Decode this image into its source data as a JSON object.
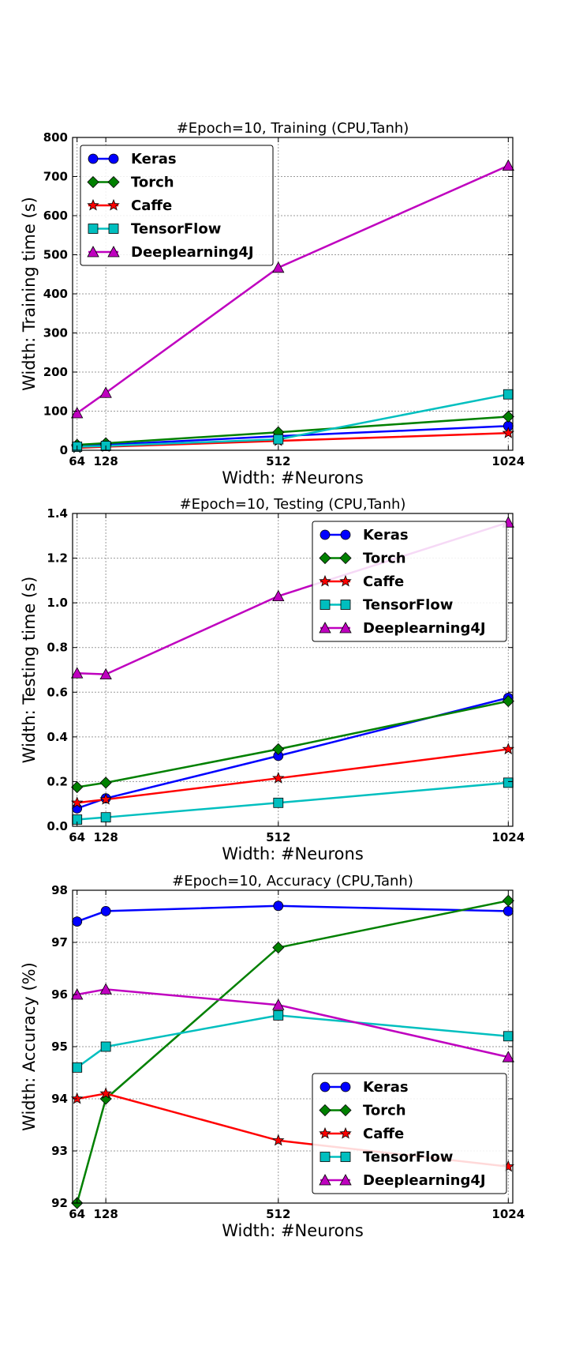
{
  "chart_data": [
    {
      "type": "line",
      "title": "#Epoch=10, Training (CPU,Tanh)",
      "xlabel": "Width: #Neurons",
      "ylabel": "Width: Training time (s)",
      "x": [
        64,
        128,
        512,
        1024
      ],
      "xticks": [
        64,
        128,
        512,
        1024
      ],
      "xlim": [
        54,
        1034
      ],
      "ylim": [
        0,
        800
      ],
      "yticks": [
        0,
        100,
        200,
        300,
        400,
        500,
        600,
        700,
        800
      ],
      "grid": true,
      "legend_position": "top-left",
      "series": [
        {
          "name": "Keras",
          "color": "#0000ff",
          "marker": "circle",
          "values": [
            10,
            14,
            36,
            62
          ]
        },
        {
          "name": "Torch",
          "color": "#008000",
          "marker": "diamond",
          "values": [
            14,
            18,
            46,
            86
          ]
        },
        {
          "name": "Caffe",
          "color": "#ff0000",
          "marker": "star",
          "values": [
            6,
            9,
            24,
            44
          ]
        },
        {
          "name": "TensorFlow",
          "color": "#00bfbf",
          "marker": "square",
          "values": [
            9,
            11,
            28,
            143
          ]
        },
        {
          "name": "Deeplearning4J",
          "color": "#bf00bf",
          "marker": "triangle",
          "values": [
            95,
            147,
            467,
            728
          ]
        }
      ]
    },
    {
      "type": "line",
      "title": "#Epoch=10, Testing (CPU,Tanh)",
      "xlabel": "Width: #Neurons",
      "ylabel": "Width: Testing time (s)",
      "x": [
        64,
        128,
        512,
        1024
      ],
      "xticks": [
        64,
        128,
        512,
        1024
      ],
      "xlim": [
        54,
        1034
      ],
      "ylim": [
        0,
        1.4
      ],
      "yticks": [
        0.0,
        0.2,
        0.4,
        0.6,
        0.8,
        1.0,
        1.2,
        1.4
      ],
      "grid": true,
      "legend_position": "top-right",
      "series": [
        {
          "name": "Keras",
          "color": "#0000ff",
          "marker": "circle",
          "values": [
            0.08,
            0.125,
            0.315,
            0.575
          ]
        },
        {
          "name": "Torch",
          "color": "#008000",
          "marker": "diamond",
          "values": [
            0.175,
            0.195,
            0.345,
            0.56
          ]
        },
        {
          "name": "Caffe",
          "color": "#ff0000",
          "marker": "star",
          "values": [
            0.105,
            0.12,
            0.215,
            0.345
          ]
        },
        {
          "name": "TensorFlow",
          "color": "#00bfbf",
          "marker": "square",
          "values": [
            0.03,
            0.04,
            0.105,
            0.195
          ]
        },
        {
          "name": "Deeplearning4J",
          "color": "#bf00bf",
          "marker": "triangle",
          "values": [
            0.685,
            0.68,
            1.03,
            1.36
          ]
        }
      ]
    },
    {
      "type": "line",
      "title": "#Epoch=10, Accuracy (CPU,Tanh)",
      "xlabel": "Width: #Neurons",
      "ylabel": "Width: Accuracy (%)",
      "x": [
        64,
        128,
        512,
        1024
      ],
      "xticks": [
        64,
        128,
        512,
        1024
      ],
      "xlim": [
        54,
        1034
      ],
      "ylim": [
        92,
        98
      ],
      "yticks": [
        92,
        93,
        94,
        95,
        96,
        97,
        98
      ],
      "grid": true,
      "legend_position": "lower-right",
      "series": [
        {
          "name": "Keras",
          "color": "#0000ff",
          "marker": "circle",
          "values": [
            97.4,
            97.6,
            97.7,
            97.6
          ]
        },
        {
          "name": "Torch",
          "color": "#008000",
          "marker": "diamond",
          "values": [
            92.0,
            94.0,
            96.9,
            97.8
          ]
        },
        {
          "name": "Caffe",
          "color": "#ff0000",
          "marker": "star",
          "values": [
            94.0,
            94.1,
            93.2,
            92.7
          ]
        },
        {
          "name": "TensorFlow",
          "color": "#00bfbf",
          "marker": "square",
          "values": [
            94.6,
            95.0,
            95.6,
            95.2
          ]
        },
        {
          "name": "Deeplearning4J",
          "color": "#bf00bf",
          "marker": "triangle",
          "values": [
            96.0,
            96.1,
            95.8,
            94.8
          ]
        }
      ]
    }
  ]
}
